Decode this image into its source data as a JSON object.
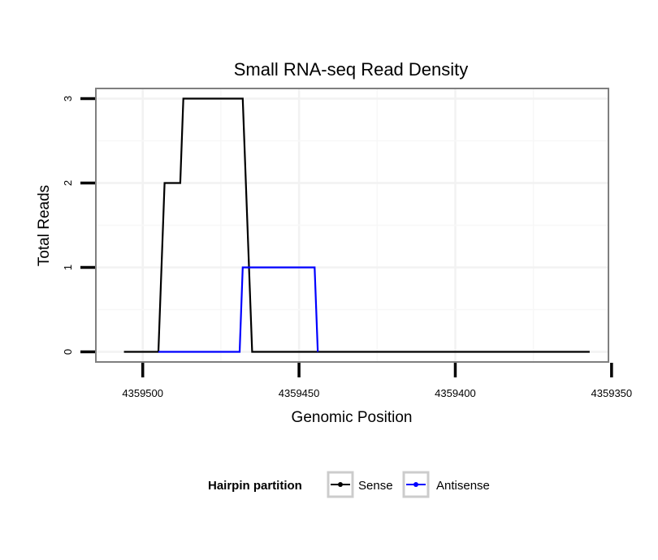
{
  "chart_data": {
    "type": "line",
    "title": "Small RNA-seq Read Density",
    "xlabel": "Genomic Position",
    "ylabel": "Total Reads",
    "x_reversed": true,
    "xlim": [
      4359351,
      4359515
    ],
    "ylim": [
      -0.12,
      3.12
    ],
    "x_ticks": [
      4359500,
      4359450,
      4359400,
      4359350
    ],
    "x_tick_labels": [
      "4359500",
      "4359450",
      "4359400",
      "4359350"
    ],
    "y_ticks": [
      0,
      1,
      2,
      3
    ],
    "y_tick_labels": [
      "0",
      "1",
      "2",
      "3"
    ],
    "grid": true,
    "legend": {
      "title": "Hairpin partition",
      "position": "bottom",
      "entries": [
        "Sense",
        "Antisense"
      ]
    },
    "series": [
      {
        "name": "Sense",
        "color": "#000000",
        "points": [
          [
            4359506,
            0
          ],
          [
            4359495,
            0
          ],
          [
            4359493,
            2
          ],
          [
            4359488,
            2
          ],
          [
            4359487,
            3
          ],
          [
            4359468,
            3
          ],
          [
            4359465,
            0
          ],
          [
            4359357,
            0
          ]
        ]
      },
      {
        "name": "Antisense",
        "color": "#0000ff",
        "points": [
          [
            4359495,
            0
          ],
          [
            4359469,
            0
          ],
          [
            4359468,
            1
          ],
          [
            4359445,
            1
          ],
          [
            4359444,
            0
          ]
        ]
      }
    ]
  }
}
